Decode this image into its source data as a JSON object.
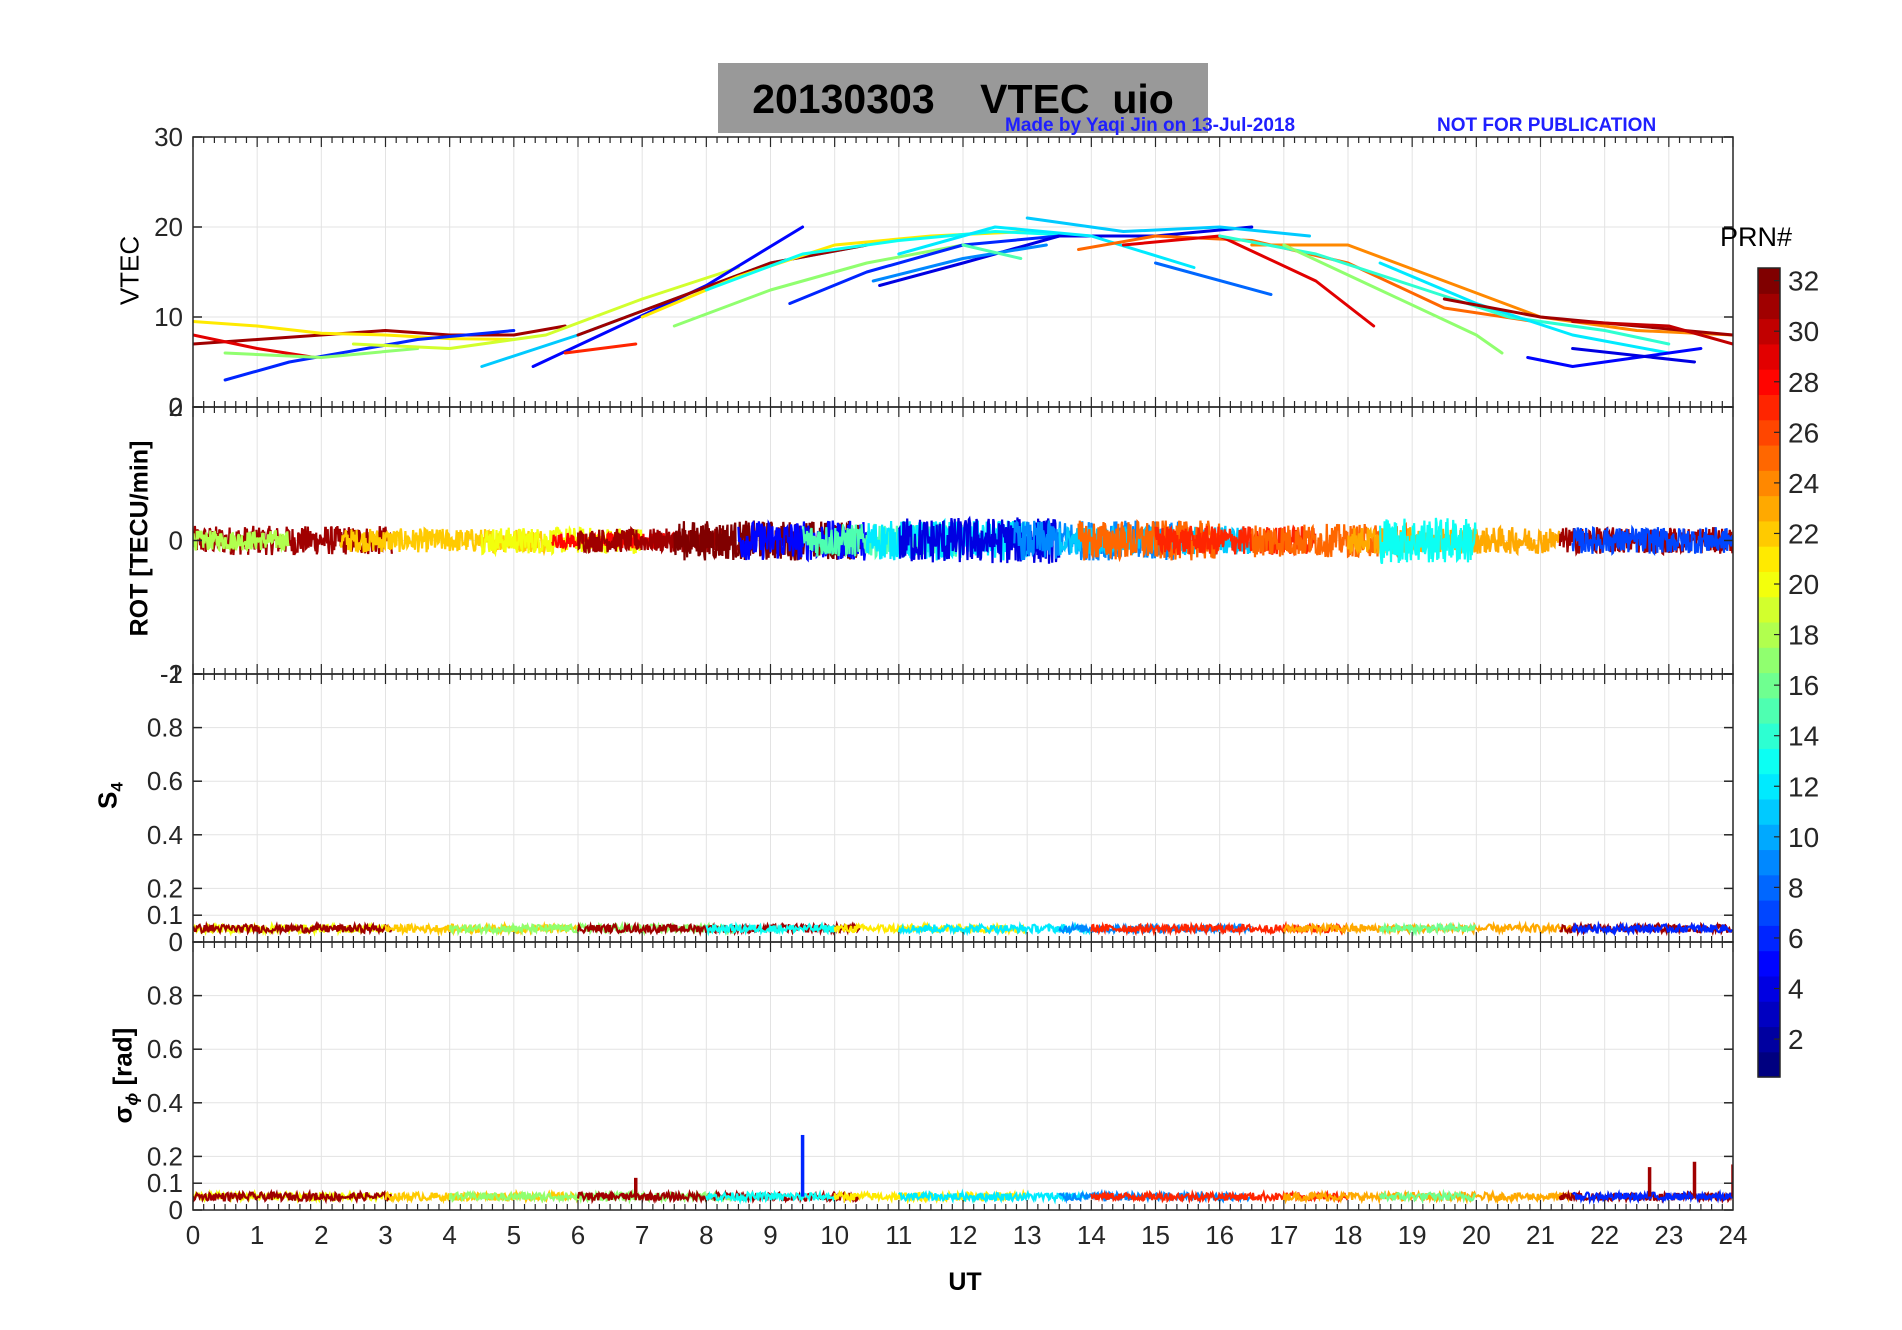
{
  "header": {
    "title": "20130303    VTEC  uio",
    "made_by": "Made by Yaqi Jin on 13-Jul-2018",
    "notice": "NOT FOR PUBLICATION"
  },
  "colorbar": {
    "title": "PRN#",
    "ticks": [
      "2",
      "4",
      "6",
      "8",
      "10",
      "12",
      "14",
      "16",
      "18",
      "20",
      "22",
      "24",
      "26",
      "28",
      "30",
      "32"
    ],
    "range": [
      1,
      32
    ],
    "colormap": "jet"
  },
  "chart_data": [
    {
      "type": "line",
      "panel": "vtec",
      "ylabel": "VTEC",
      "xlim": [
        0,
        24
      ],
      "ylim": [
        0,
        30
      ],
      "yticks": [
        "0",
        "10",
        "20",
        "30"
      ],
      "grid": true,
      "series": [
        {
          "prn": 31,
          "x": [
            0,
            1,
            2,
            3,
            4,
            5,
            5.8
          ],
          "values": [
            7,
            7.5,
            8,
            8.5,
            8,
            8,
            9
          ]
        },
        {
          "prn": 21,
          "x": [
            0,
            1,
            2,
            3,
            4,
            5
          ],
          "values": [
            9.5,
            9,
            8.2,
            8,
            7.6,
            7.5
          ]
        },
        {
          "prn": 29,
          "x": [
            0,
            1,
            1.9
          ],
          "values": [
            8,
            6.5,
            5.5
          ]
        },
        {
          "prn": 6,
          "x": [
            0.5,
            1.5,
            3.5,
            5
          ],
          "values": [
            3,
            5,
            7.5,
            8.5
          ]
        },
        {
          "prn": 17,
          "x": [
            0.5,
            2,
            3.5
          ],
          "values": [
            6,
            5.5,
            6.5
          ]
        },
        {
          "prn": 19,
          "x": [
            2.5,
            4,
            5.5,
            7,
            8.5
          ],
          "values": [
            7,
            6.5,
            8,
            12,
            15.5
          ]
        },
        {
          "prn": 11,
          "x": [
            4.5,
            6,
            7.5,
            9,
            10.5
          ],
          "values": [
            4.5,
            8,
            12,
            16,
            18
          ]
        },
        {
          "prn": 5,
          "x": [
            5.3,
            6.5,
            8,
            9.5
          ],
          "values": [
            4.5,
            8.5,
            13.5,
            20
          ]
        },
        {
          "prn": 27,
          "x": [
            5.8,
            6.9
          ],
          "values": [
            6,
            7
          ]
        },
        {
          "prn": 31,
          "x": [
            6,
            7.5,
            9,
            10.5
          ],
          "values": [
            8,
            12,
            16,
            18
          ]
        },
        {
          "prn": 17,
          "x": [
            7.5,
            9,
            10.5,
            12
          ],
          "values": [
            9,
            13,
            16,
            18
          ]
        },
        {
          "prn": 21,
          "x": [
            7,
            8.5,
            10,
            11.5,
            13
          ],
          "values": [
            10,
            14.5,
            18,
            19,
            19.5
          ]
        },
        {
          "prn": 13,
          "x": [
            8,
            9.5,
            11,
            12.5,
            14
          ],
          "values": [
            13,
            17,
            18.5,
            19.5,
            19
          ]
        },
        {
          "prn": 6,
          "x": [
            9.3,
            10.5,
            12,
            13.5
          ],
          "values": [
            11.5,
            15,
            18,
            19
          ]
        },
        {
          "prn": 4,
          "x": [
            10.7,
            12,
            13.5,
            15,
            16.5
          ],
          "values": [
            13.5,
            16,
            19,
            19,
            20
          ]
        },
        {
          "prn": 9,
          "x": [
            10.6,
            12,
            13.3
          ],
          "values": [
            14,
            16.5,
            18
          ]
        },
        {
          "prn": 12,
          "x": [
            11,
            12.5,
            14,
            15.6
          ],
          "values": [
            17,
            20,
            19,
            15.5
          ]
        },
        {
          "prn": 15,
          "x": [
            12,
            12.9
          ],
          "values": [
            18,
            16.5
          ]
        },
        {
          "prn": 11,
          "x": [
            13,
            14.5,
            16,
            17.4
          ],
          "values": [
            21,
            19.5,
            20,
            19
          ]
        },
        {
          "prn": 8,
          "x": [
            15,
            16.8
          ],
          "values": [
            16,
            12.5
          ]
        },
        {
          "prn": 25,
          "x": [
            13.8,
            15,
            16.5,
            18,
            19.5,
            20.9
          ],
          "values": [
            17.5,
            19,
            18.5,
            16,
            11,
            9.5
          ]
        },
        {
          "prn": 29,
          "x": [
            14.5,
            16,
            17.5,
            18.4
          ],
          "values": [
            18,
            19,
            14,
            9
          ]
        },
        {
          "prn": 24,
          "x": [
            16.5,
            18,
            19.5,
            21,
            22.5,
            24
          ],
          "values": [
            18,
            18,
            14,
            10,
            8.5,
            8
          ]
        },
        {
          "prn": 14,
          "x": [
            16,
            17.5,
            19,
            20.5,
            22,
            23
          ],
          "values": [
            19,
            17,
            13.5,
            10,
            8.5,
            7
          ]
        },
        {
          "prn": 17,
          "x": [
            17,
            18.5,
            20,
            20.4
          ],
          "values": [
            18,
            13,
            8,
            6
          ]
        },
        {
          "prn": 12,
          "x": [
            18.5,
            20,
            21.5,
            23
          ],
          "values": [
            16,
            11.5,
            8,
            6
          ]
        },
        {
          "prn": 31,
          "x": [
            19.5,
            21,
            22.5,
            24
          ],
          "values": [
            12,
            10,
            9,
            8
          ]
        },
        {
          "prn": 5,
          "x": [
            20.8,
            21.5,
            22.5,
            23.5
          ],
          "values": [
            5.5,
            4.5,
            5.5,
            6.5
          ]
        },
        {
          "prn": 30,
          "x": [
            21.5,
            23,
            24
          ],
          "values": [
            9.5,
            9,
            7
          ]
        },
        {
          "prn": 4,
          "x": [
            21.5,
            23.4
          ],
          "values": [
            6.5,
            5
          ]
        }
      ]
    },
    {
      "type": "line",
      "panel": "rot",
      "ylabel": "ROT [TECU/min]",
      "xlim": [
        0,
        24
      ],
      "ylim": [
        -2,
        2
      ],
      "yticks": [
        "-2",
        "0",
        "2"
      ],
      "grid": true
    },
    {
      "type": "line",
      "panel": "s4",
      "ylabel": "S4",
      "xlim": [
        0,
        24
      ],
      "ylim": [
        0,
        1
      ],
      "yticks": [
        "0",
        "0.1",
        "0.2",
        "0.4",
        "0.6",
        "0.8",
        "1"
      ],
      "grid": true,
      "level": 0.05
    },
    {
      "type": "line",
      "panel": "sigma",
      "ylabel": "σϕ [rad]",
      "xlim": [
        0,
        24
      ],
      "ylim": [
        0,
        1
      ],
      "yticks": [
        "0",
        "0.1",
        "0.2",
        "0.4",
        "0.6",
        "0.8"
      ],
      "grid": true,
      "level": 0.05,
      "spikes": [
        {
          "x": 9.5,
          "value": 0.28,
          "prn": 6
        },
        {
          "x": 6.9,
          "value": 0.12,
          "prn": 31
        },
        {
          "x": 22.7,
          "value": 0.16,
          "prn": 31
        },
        {
          "x": 23.4,
          "value": 0.18,
          "prn": 31
        },
        {
          "x": 24,
          "value": 0.17,
          "prn": 31
        }
      ]
    }
  ],
  "xaxis": {
    "label": "UT",
    "ticks": [
      "0",
      "1",
      "2",
      "3",
      "4",
      "5",
      "6",
      "7",
      "8",
      "9",
      "10",
      "11",
      "12",
      "13",
      "14",
      "15",
      "16",
      "17",
      "18",
      "19",
      "20",
      "21",
      "22",
      "23",
      "24"
    ]
  }
}
